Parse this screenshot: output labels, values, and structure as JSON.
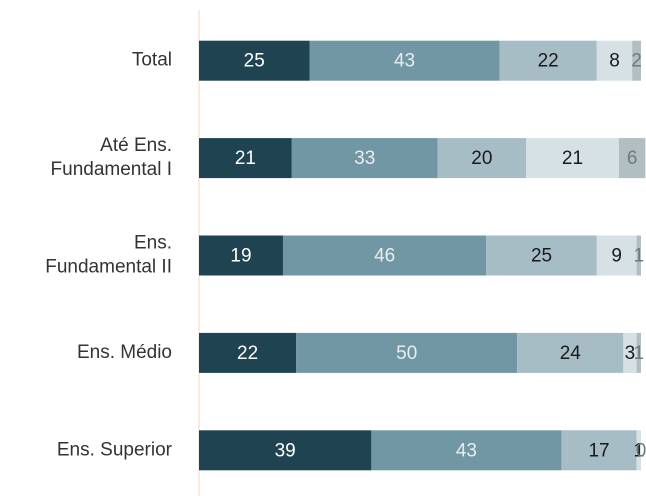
{
  "chart_data": {
    "type": "stacked-bar-horizontal",
    "categories": [
      "Total",
      "Até Ens. Fundamental I",
      "Ens. Fundamental II",
      "Ens. Médio",
      "Ens. Superior"
    ],
    "series": [
      {
        "color": "#1f4350",
        "values": [
          25,
          21,
          19,
          22,
          39
        ]
      },
      {
        "color": "#7196a4",
        "values": [
          43,
          33,
          46,
          50,
          43
        ]
      },
      {
        "color": "#a7bdc6",
        "values": [
          22,
          20,
          25,
          24,
          17
        ]
      },
      {
        "color": "#d6e1e5",
        "values": [
          8,
          21,
          9,
          3,
          1
        ]
      },
      {
        "color": "#b1bec2",
        "values": [
          2,
          6,
          1,
          1,
          0
        ]
      }
    ],
    "label_colors": [
      "#ffffff",
      "#e8eef0",
      "#1a1a1a",
      "#1a1a1a",
      "#6f7a7d"
    ],
    "xlim": [
      0,
      100
    ]
  }
}
